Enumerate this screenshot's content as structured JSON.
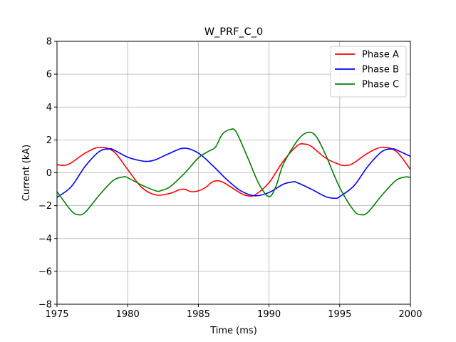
{
  "chart_data": {
    "type": "line",
    "title": "W_PRF_C_0",
    "xlabel": "Time (ms)",
    "ylabel": "Current (kA)",
    "xlim": [
      1975,
      2000
    ],
    "ylim": [
      -8,
      8
    ],
    "xticks": [
      1975,
      1980,
      1985,
      1990,
      1995,
      2000
    ],
    "yticks": [
      -8,
      -6,
      -4,
      -2,
      0,
      2,
      4,
      6,
      8
    ],
    "grid": true,
    "legend_position": "top-right",
    "series": [
      {
        "name": "Phase A",
        "color": "#ff0000",
        "x": [
          1975,
          1975.5,
          1976,
          1977,
          1978,
          1979,
          1980,
          1981,
          1982,
          1983,
          1983.6,
          1984,
          1984.5,
          1985,
          1985.5,
          1986,
          1986.5,
          1987,
          1988,
          1988.5,
          1989,
          1990,
          1991,
          1992,
          1992.5,
          1993,
          1994,
          1995,
          1995.5,
          1996,
          1997,
          1998,
          1999,
          2000
        ],
        "y": [
          0.5,
          0.45,
          0.6,
          1.2,
          1.55,
          1.3,
          0.2,
          -0.9,
          -1.35,
          -1.25,
          -1.05,
          -1.0,
          -1.15,
          -1.1,
          -0.9,
          -0.55,
          -0.5,
          -0.7,
          -1.25,
          -1.4,
          -1.35,
          -0.6,
          0.7,
          1.65,
          1.75,
          1.6,
          0.9,
          0.5,
          0.45,
          0.6,
          1.2,
          1.55,
          1.3,
          0.2
        ]
      },
      {
        "name": "Phase B",
        "color": "#0000ff",
        "x": [
          1975,
          1976,
          1977,
          1978,
          1978.7,
          1979,
          1980,
          1981,
          1981.5,
          1982,
          1983,
          1984,
          1985,
          1986,
          1987,
          1988,
          1989,
          1990,
          1991,
          1991.7,
          1992,
          1993,
          1994,
          1994.7,
          1995,
          1996,
          1997,
          1998,
          1998.7,
          1999,
          2000
        ],
        "y": [
          -1.5,
          -0.85,
          0.4,
          1.3,
          1.45,
          1.4,
          0.95,
          0.72,
          0.7,
          0.8,
          1.2,
          1.5,
          1.2,
          0.45,
          -0.4,
          -1.1,
          -1.4,
          -1.2,
          -0.7,
          -0.55,
          -0.6,
          -1.0,
          -1.45,
          -1.55,
          -1.45,
          -0.8,
          0.4,
          1.3,
          1.45,
          1.4,
          1.0
        ]
      },
      {
        "name": "Phase C",
        "color": "#008000",
        "x": [
          1975,
          1976,
          1976.5,
          1977,
          1978,
          1979,
          1979.7,
          1980,
          1981,
          1982,
          1982.3,
          1983,
          1984,
          1985,
          1985.7,
          1986.2,
          1986.7,
          1987.3,
          1987.7,
          1988.5,
          1989.3,
          1990,
          1990.5,
          1991,
          1992,
          1992.7,
          1993.3,
          1994,
          1995,
          1996,
          1996.5,
          1997,
          1998,
          1999,
          1999.7,
          2000
        ],
        "y": [
          -1.15,
          -2.3,
          -2.55,
          -2.4,
          -1.35,
          -0.45,
          -0.25,
          -0.3,
          -0.75,
          -1.1,
          -1.1,
          -0.85,
          -0.05,
          0.9,
          1.3,
          1.55,
          2.35,
          2.65,
          2.45,
          0.9,
          -0.7,
          -1.45,
          -0.8,
          0.5,
          1.95,
          2.45,
          2.25,
          1.1,
          -0.9,
          -2.3,
          -2.55,
          -2.4,
          -1.35,
          -0.45,
          -0.25,
          -0.3
        ]
      }
    ]
  }
}
